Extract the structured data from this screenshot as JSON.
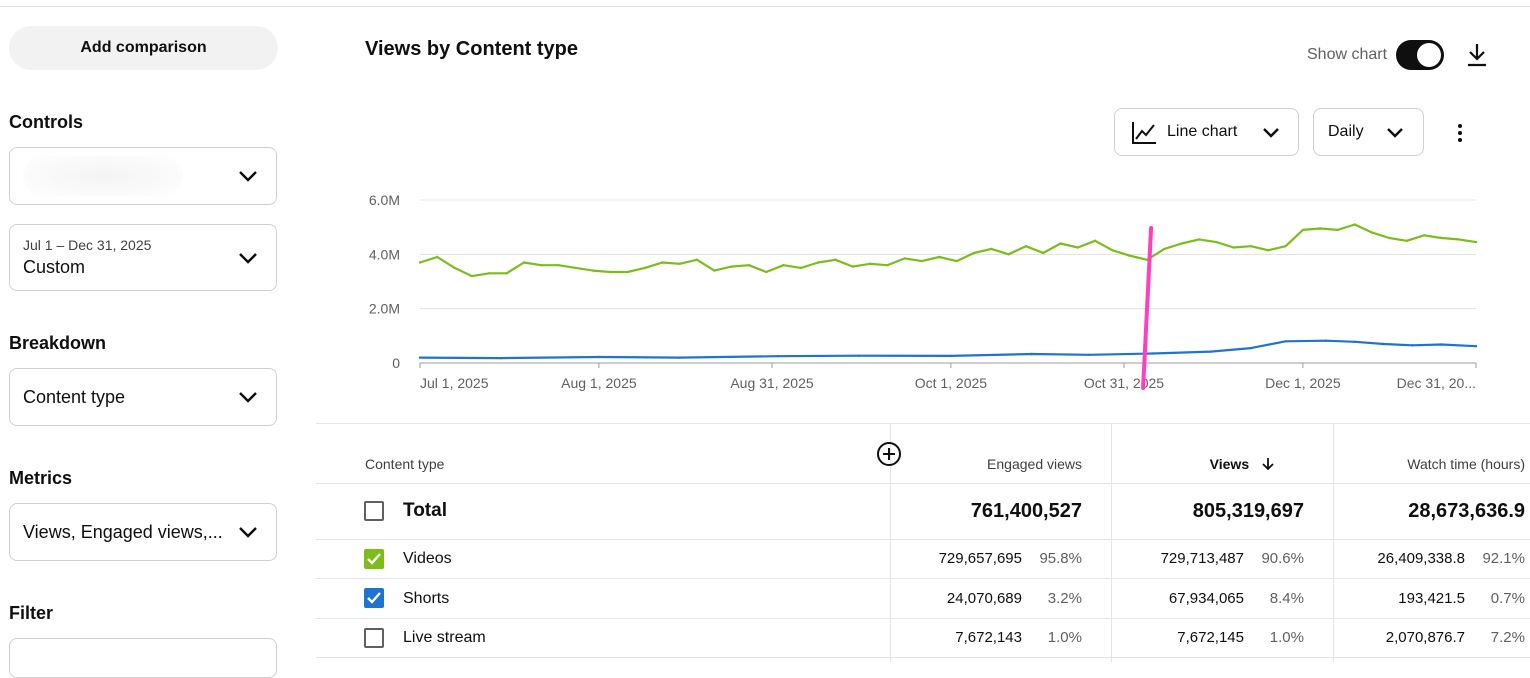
{
  "sidebar": {
    "add_comparison": "Add comparison",
    "controls_label": "Controls",
    "controls_value": "",
    "date_range": "Jul 1 – Dec 31, 2025",
    "date_preset": "Custom",
    "breakdown_label": "Breakdown",
    "breakdown_value": "Content type",
    "metrics_label": "Metrics",
    "metrics_value": "Views, Engaged views,...",
    "filter_label": "Filter"
  },
  "header": {
    "title": "Views by Content type",
    "show_chart_label": "Show chart",
    "show_chart_on": true,
    "chart_type_label": "Line chart",
    "interval_label": "Daily"
  },
  "chart_data": {
    "type": "line",
    "title": "",
    "xlabel": "",
    "ylabel": "",
    "x_range": [
      "2025-07-01",
      "2025-12-31"
    ],
    "x_ticks": [
      {
        "date": "2025-07-01",
        "label": "Jul 1, 2025"
      },
      {
        "date": "2025-08-01",
        "label": "Aug 1, 2025"
      },
      {
        "date": "2025-08-31",
        "label": "Aug 31, 2025"
      },
      {
        "date": "2025-10-01",
        "label": "Oct 1, 2025"
      },
      {
        "date": "2025-10-31",
        "label": "Oct 31, 2025"
      },
      {
        "date": "2025-12-01",
        "label": "Dec 1, 2025"
      },
      {
        "date": "2025-12-31",
        "label": "Dec 31, 20..."
      }
    ],
    "y_ticks": [
      {
        "value": 0,
        "label": "0"
      },
      {
        "value": 2000000,
        "label": "2.0M"
      },
      {
        "value": 4000000,
        "label": "4.0M"
      },
      {
        "value": 6000000,
        "label": "6.0M"
      }
    ],
    "ylim": [
      0,
      6000000
    ],
    "grid": true,
    "colors": {
      "Videos": "#7cbd1c",
      "Shorts": "#1f73d1",
      "marker": "#ff3fbf"
    },
    "marker_date": "2025-11-04",
    "series": [
      {
        "name": "Videos",
        "points": [
          [
            "2025-07-01",
            3700000
          ],
          [
            "2025-07-04",
            3900000
          ],
          [
            "2025-07-07",
            3500000
          ],
          [
            "2025-07-10",
            3200000
          ],
          [
            "2025-07-13",
            3300000
          ],
          [
            "2025-07-16",
            3300000
          ],
          [
            "2025-07-19",
            3700000
          ],
          [
            "2025-07-22",
            3600000
          ],
          [
            "2025-07-25",
            3600000
          ],
          [
            "2025-07-28",
            3500000
          ],
          [
            "2025-07-31",
            3400000
          ],
          [
            "2025-08-03",
            3350000
          ],
          [
            "2025-08-06",
            3350000
          ],
          [
            "2025-08-09",
            3500000
          ],
          [
            "2025-08-12",
            3700000
          ],
          [
            "2025-08-15",
            3650000
          ],
          [
            "2025-08-18",
            3800000
          ],
          [
            "2025-08-21",
            3400000
          ],
          [
            "2025-08-24",
            3550000
          ],
          [
            "2025-08-27",
            3600000
          ],
          [
            "2025-08-30",
            3350000
          ],
          [
            "2025-09-02",
            3600000
          ],
          [
            "2025-09-05",
            3500000
          ],
          [
            "2025-09-08",
            3700000
          ],
          [
            "2025-09-11",
            3800000
          ],
          [
            "2025-09-14",
            3550000
          ],
          [
            "2025-09-17",
            3650000
          ],
          [
            "2025-09-20",
            3600000
          ],
          [
            "2025-09-23",
            3850000
          ],
          [
            "2025-09-26",
            3750000
          ],
          [
            "2025-09-29",
            3900000
          ],
          [
            "2025-10-02",
            3750000
          ],
          [
            "2025-10-05",
            4050000
          ],
          [
            "2025-10-08",
            4200000
          ],
          [
            "2025-10-11",
            4000000
          ],
          [
            "2025-10-14",
            4300000
          ],
          [
            "2025-10-17",
            4050000
          ],
          [
            "2025-10-20",
            4400000
          ],
          [
            "2025-10-23",
            4250000
          ],
          [
            "2025-10-26",
            4500000
          ],
          [
            "2025-10-29",
            4150000
          ],
          [
            "2025-11-01",
            3950000
          ],
          [
            "2025-11-04",
            3800000
          ],
          [
            "2025-11-07",
            4200000
          ],
          [
            "2025-11-10",
            4400000
          ],
          [
            "2025-11-13",
            4550000
          ],
          [
            "2025-11-16",
            4450000
          ],
          [
            "2025-11-19",
            4250000
          ],
          [
            "2025-11-22",
            4300000
          ],
          [
            "2025-11-25",
            4150000
          ],
          [
            "2025-11-28",
            4300000
          ],
          [
            "2025-12-01",
            4900000
          ],
          [
            "2025-12-04",
            4950000
          ],
          [
            "2025-12-07",
            4900000
          ],
          [
            "2025-12-10",
            5100000
          ],
          [
            "2025-12-13",
            4800000
          ],
          [
            "2025-12-16",
            4600000
          ],
          [
            "2025-12-19",
            4500000
          ],
          [
            "2025-12-22",
            4700000
          ],
          [
            "2025-12-25",
            4600000
          ],
          [
            "2025-12-28",
            4550000
          ],
          [
            "2025-12-31",
            4450000
          ]
        ]
      },
      {
        "name": "Shorts",
        "points": [
          [
            "2025-07-01",
            200000
          ],
          [
            "2025-07-15",
            180000
          ],
          [
            "2025-08-01",
            220000
          ],
          [
            "2025-08-15",
            200000
          ],
          [
            "2025-09-01",
            250000
          ],
          [
            "2025-09-15",
            270000
          ],
          [
            "2025-10-01",
            260000
          ],
          [
            "2025-10-15",
            330000
          ],
          [
            "2025-10-25",
            300000
          ],
          [
            "2025-11-05",
            350000
          ],
          [
            "2025-11-15",
            420000
          ],
          [
            "2025-11-22",
            550000
          ],
          [
            "2025-11-28",
            800000
          ],
          [
            "2025-12-05",
            820000
          ],
          [
            "2025-12-10",
            780000
          ],
          [
            "2025-12-15",
            700000
          ],
          [
            "2025-12-20",
            650000
          ],
          [
            "2025-12-25",
            680000
          ],
          [
            "2025-12-31",
            620000
          ]
        ]
      }
    ]
  },
  "table": {
    "col_content_type": "Content type",
    "col_engaged": "Engaged views",
    "col_views": "Views",
    "col_watch": "Watch time (hours)",
    "total": {
      "label": "Total",
      "engaged": "761,400,527",
      "views": "805,319,697",
      "watch": "28,673,636.9"
    },
    "rows": [
      {
        "label": "Videos",
        "engaged": "729,657,695",
        "engaged_pct": "95.8%",
        "views": "729,713,487",
        "views_pct": "90.6%",
        "watch": "26,409,338.8",
        "watch_pct": "92.1%",
        "checked": true,
        "color": "#7cbd1c"
      },
      {
        "label": "Shorts",
        "engaged": "24,070,689",
        "engaged_pct": "3.2%",
        "views": "67,934,065",
        "views_pct": "8.4%",
        "watch": "193,421.5",
        "watch_pct": "0.7%",
        "checked": true,
        "color": "#1f73d1"
      },
      {
        "label": "Live stream",
        "engaged": "7,672,143",
        "engaged_pct": "1.0%",
        "views": "7,672,145",
        "views_pct": "1.0%",
        "watch": "2,070,876.7",
        "watch_pct": "7.2%",
        "checked": false
      }
    ]
  },
  "icons": {
    "download": "download-icon",
    "line_chart": "line-chart-icon",
    "more": "more-vert-icon",
    "add_column": "add-circle-icon",
    "sort": "arrow-down-icon"
  }
}
